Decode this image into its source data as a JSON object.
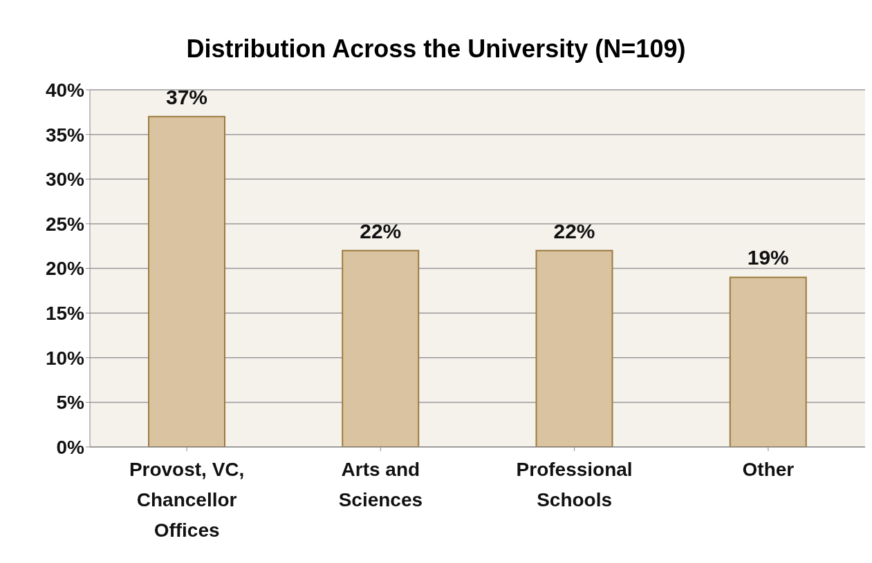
{
  "chart_data": {
    "type": "bar",
    "title": "Distribution Across the University (N=109)",
    "categories": [
      "Provost, VC, Chancellor Offices",
      "Arts and Sciences",
      "Professional Schools",
      "Other"
    ],
    "values": [
      37,
      22,
      22,
      19
    ],
    "value_labels": [
      "37%",
      "22%",
      "22%",
      "19%"
    ],
    "color": "#d9c3a0",
    "ylim": [
      0,
      40
    ],
    "yticks": [
      {
        "value": 0,
        "label": "0%"
      },
      {
        "value": 5,
        "label": "5%"
      },
      {
        "value": 10,
        "label": "10%"
      },
      {
        "value": 15,
        "label": "15%"
      },
      {
        "value": 20,
        "label": "20%"
      },
      {
        "value": 25,
        "label": "25%"
      },
      {
        "value": 30,
        "label": "30%"
      },
      {
        "value": 35,
        "label": "35%"
      },
      {
        "value": 40,
        "label": "40%"
      }
    ],
    "grid": "y"
  }
}
